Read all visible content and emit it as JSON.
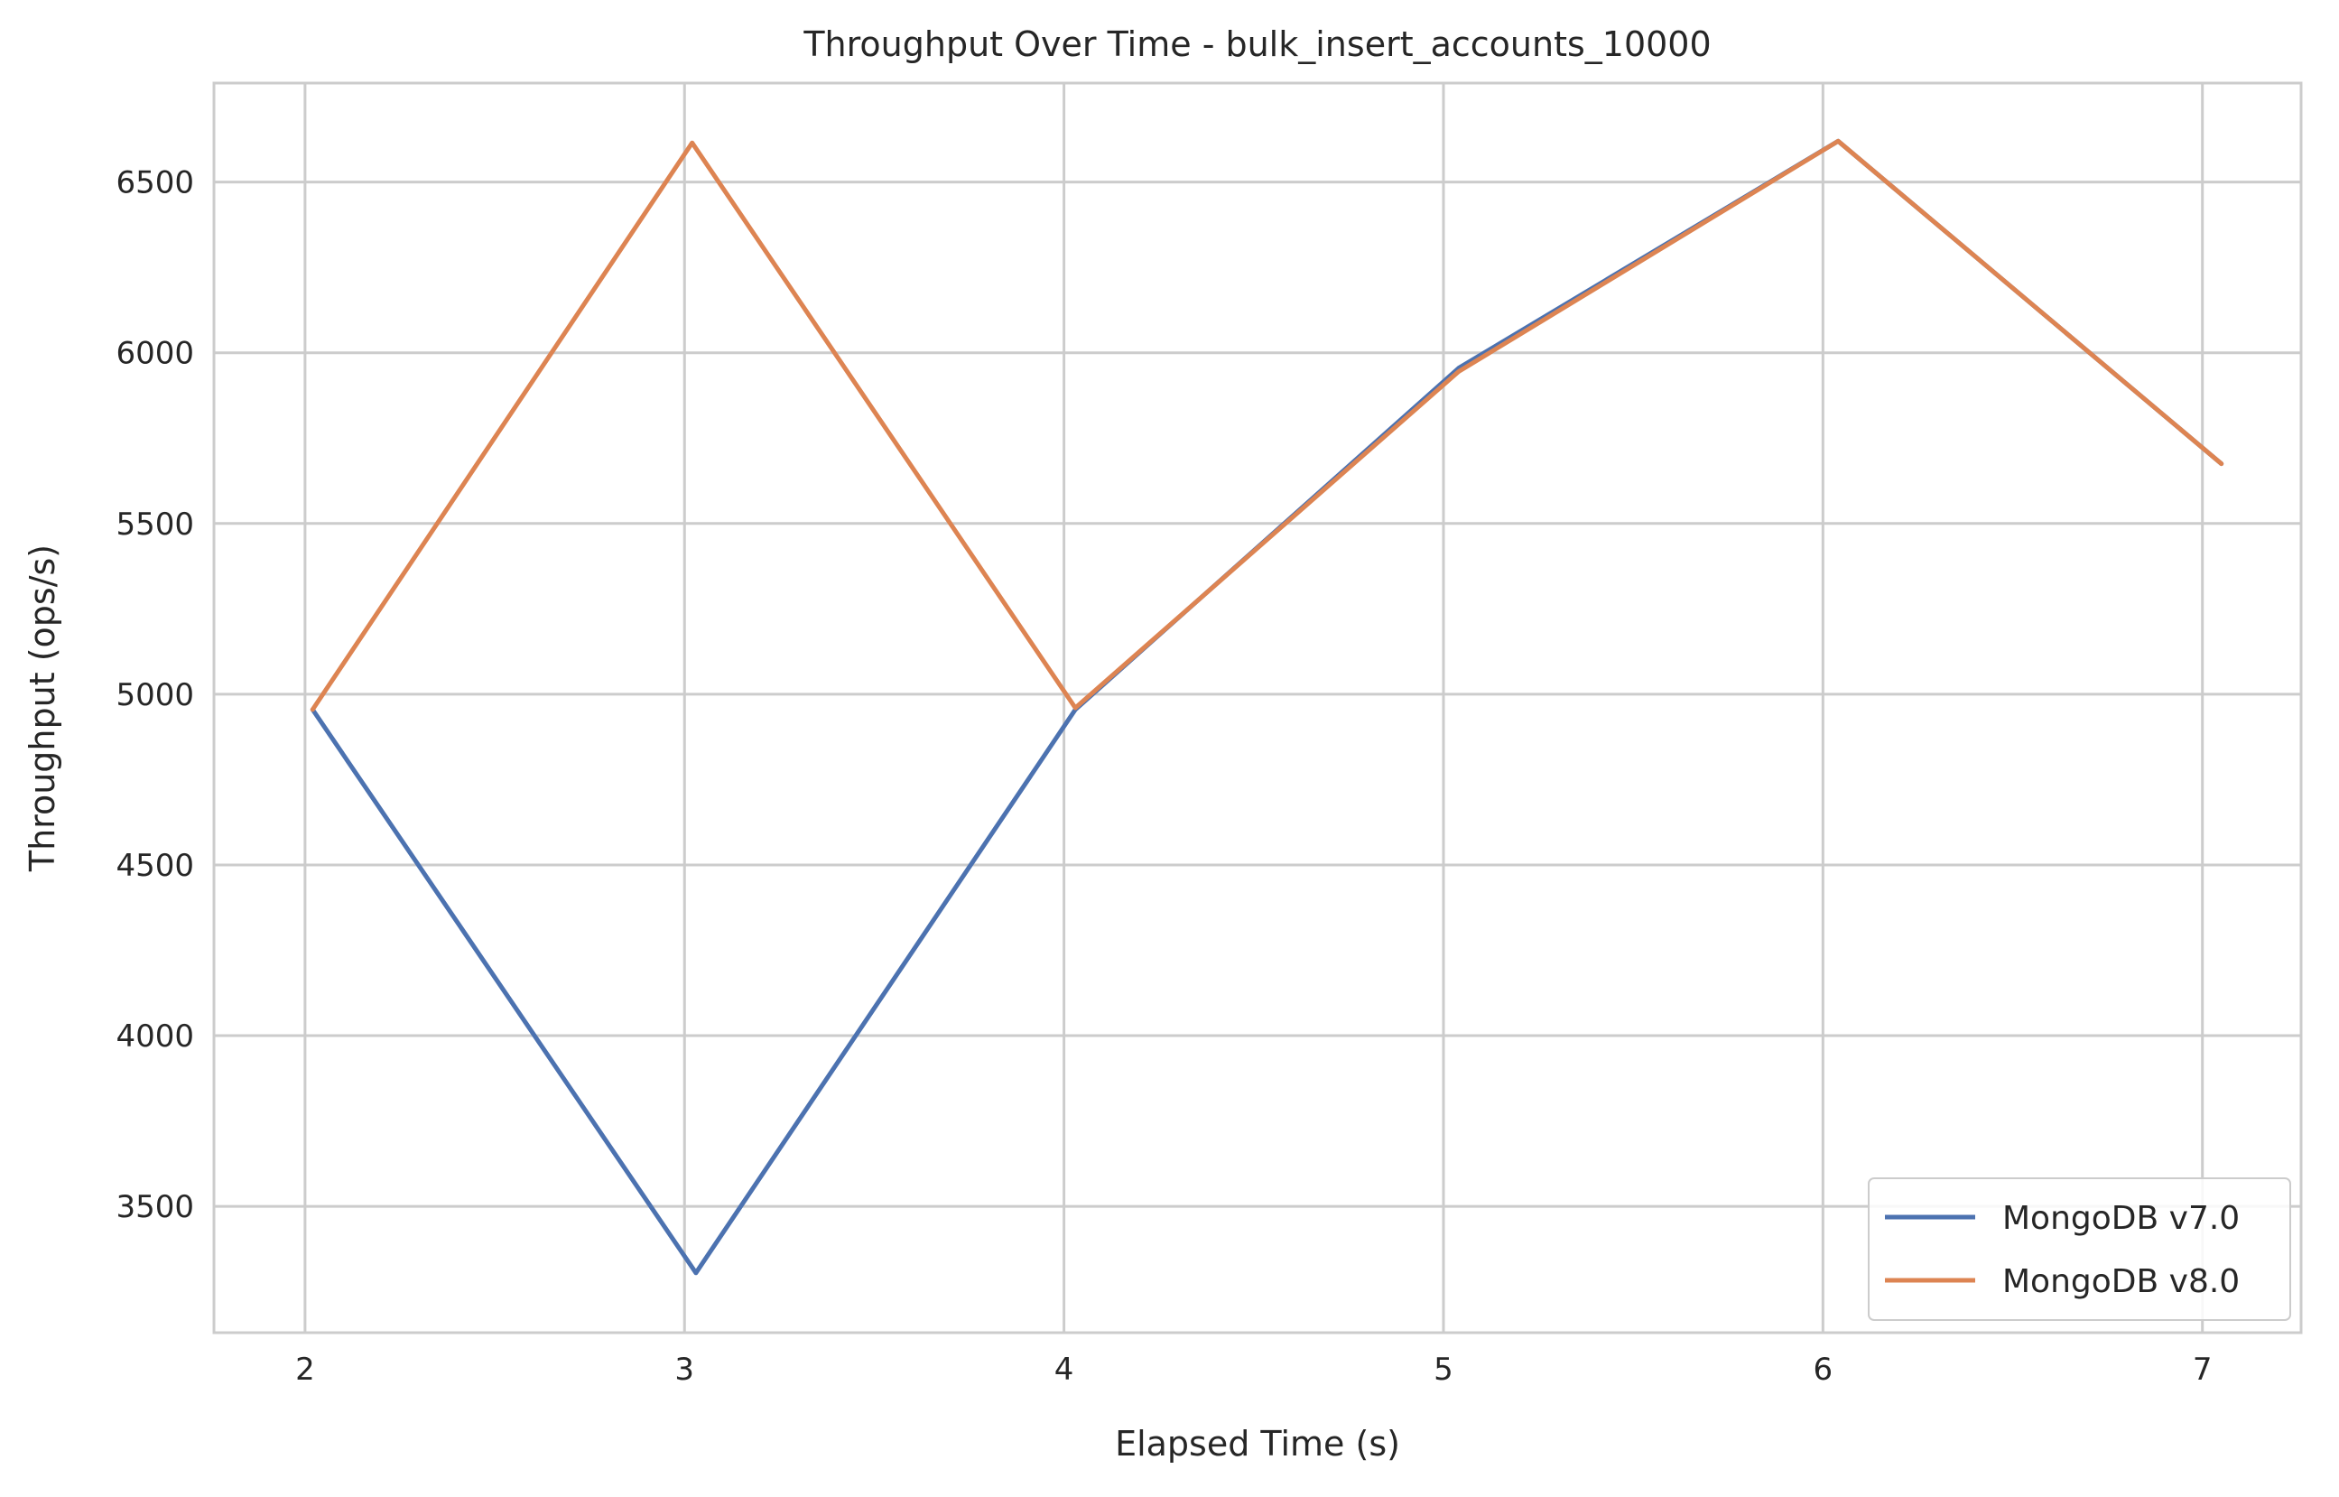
{
  "chart_data": {
    "type": "line",
    "title": "Throughput Over Time - bulk_insert_accounts_10000",
    "xlabel": "Elapsed Time (s)",
    "ylabel": "Throughput (ops/s)",
    "xlim": [
      1.76,
      7.26
    ],
    "ylim": [
      3130,
      6790
    ],
    "xticks": [
      2,
      3,
      4,
      5,
      6,
      7
    ],
    "yticks": [
      3500,
      4000,
      4500,
      5000,
      5500,
      6000,
      6500
    ],
    "grid": true,
    "legend_position": "bottom-right",
    "series": [
      {
        "name": "MongoDB v7.0",
        "color": "#4c72b0",
        "x": [
          2.02,
          3.03,
          4.03,
          5.04,
          6.04,
          7.05
        ],
        "y": [
          4955,
          3305,
          4955,
          5955,
          6620,
          5675
        ]
      },
      {
        "name": "MongoDB v8.0",
        "color": "#dd8452",
        "x": [
          2.02,
          3.02,
          4.03,
          5.04,
          6.04,
          7.05
        ],
        "y": [
          4955,
          6615,
          4960,
          5945,
          6620,
          5675
        ]
      }
    ]
  }
}
